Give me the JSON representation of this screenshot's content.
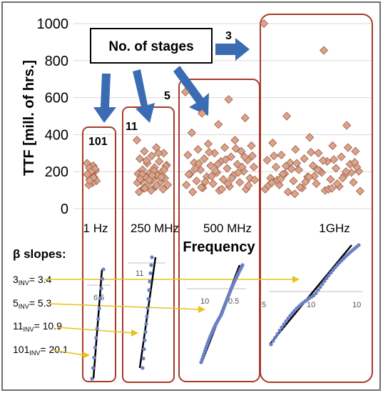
{
  "chart_data": [
    {
      "type": "scatter",
      "title": "",
      "ylabel": "TTF [mill. of hrs.]",
      "xlabel": "Frequency",
      "ylim": [
        0,
        1000
      ],
      "yticks": [
        0,
        200,
        400,
        600,
        800,
        1000
      ],
      "categories": [
        "1 Hz",
        "250 MHz",
        "500 MHz",
        "1GHz"
      ],
      "grid": true,
      "legend_box": "No. of stages",
      "marker_color": "#d9a48b",
      "box_color": "#a83a2a",
      "arrow_color": "#3b6cb3",
      "groups": [
        {
          "stages": "101",
          "category": "1 Hz",
          "values": [
            245,
            232,
            220,
            205,
            193,
            182,
            170,
            160,
            150,
            140,
            128,
            215,
            200,
            185,
            166,
            152
          ]
        },
        {
          "stages": "11",
          "category": "250 MHz",
          "values": [
            370,
            330,
            310,
            300,
            285,
            270,
            255,
            245,
            235,
            222,
            210,
            200,
            195,
            188,
            180,
            172,
            165,
            158,
            150,
            142,
            135,
            128,
            120,
            112,
            105,
            98,
            90,
            300,
            260,
            230,
            205,
            185,
            170,
            155,
            140,
            125,
            110,
            210,
            180,
            160
          ]
        },
        {
          "stages": "5",
          "category": "500 MHz",
          "values": [
            630,
            590,
            515,
            490,
            455,
            410,
            370,
            350,
            340,
            330,
            320,
            310,
            300,
            290,
            280,
            270,
            262,
            255,
            248,
            240,
            232,
            225,
            218,
            210,
            202,
            195,
            188,
            180,
            172,
            165,
            158,
            150,
            142,
            135,
            128,
            120,
            112,
            105,
            98,
            90,
            325,
            305,
            285,
            265,
            245,
            225,
            205,
            185,
            165,
            145,
            125,
            105,
            215,
            195,
            175,
            155,
            135,
            115,
            280,
            240
          ]
        },
        {
          "stages": "3",
          "category": "1GHz",
          "values": [
            1000,
            855,
            500,
            450,
            385,
            355,
            340,
            320,
            310,
            300,
            290,
            280,
            270,
            262,
            255,
            248,
            240,
            232,
            225,
            218,
            210,
            202,
            195,
            188,
            180,
            172,
            165,
            158,
            150,
            142,
            135,
            128,
            120,
            112,
            105,
            98,
            90,
            330,
            305,
            285,
            265,
            245,
            225,
            205,
            185,
            165,
            145,
            125,
            105,
            215,
            195,
            175,
            155,
            135,
            115,
            95,
            260,
            230,
            200,
            170,
            140,
            110,
            80,
            250,
            210,
            160
          ]
        }
      ]
    },
    {
      "type": "scatter",
      "title": "β slopes:",
      "series": [
        {
          "name": "3INV",
          "label_base": "3",
          "label_sub": "INV",
          "label_value": "= 3.4",
          "slope": 3.4,
          "n_points": 42,
          "tick_labels": [
            "5",
            "10",
            "10"
          ]
        },
        {
          "name": "5INV",
          "label_base": "5",
          "label_sub": "INV",
          "label_value": "= 5.3",
          "slope": 5.3,
          "n_points": 46,
          "tick_labels": [
            "10",
            "0.5"
          ]
        },
        {
          "name": "11INV",
          "label_base": "11",
          "label_sub": "INV",
          "label_value": "= 10.9",
          "slope": 10.9,
          "n_points": 14,
          "tick_labels": [
            "11"
          ]
        },
        {
          "name": "101INV",
          "label_base": "101",
          "label_sub": "INV",
          "label_value": "= 20.1",
          "slope": 20.1,
          "n_points": 12,
          "tick_labels": [
            "6.5"
          ]
        }
      ]
    }
  ]
}
